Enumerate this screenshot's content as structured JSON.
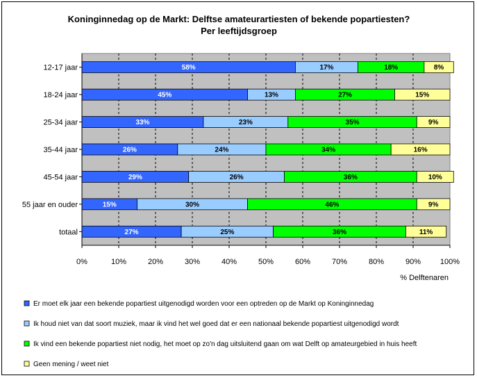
{
  "chart_data": {
    "type": "bar",
    "orientation": "horizontal",
    "stacked": "percent",
    "title": "Koninginnedag op de Markt: Delftse amateurartiesten of bekende popartiesten?",
    "subtitle": "Per leeftijdsgroep",
    "xlabel": "% Delftenaren",
    "ylabel": "",
    "xlim": [
      0,
      100
    ],
    "xticks": [
      "0%",
      "10%",
      "20%",
      "30%",
      "40%",
      "50%",
      "60%",
      "70%",
      "80%",
      "90%",
      "100%"
    ],
    "grid": true,
    "legend_position": "bottom",
    "plot_background": "#c0c0c0",
    "categories": [
      "12-17 jaar",
      "18-24 jaar",
      "25-34 jaar",
      "35-44 jaar",
      "45-54 jaar",
      "55 jaar en ouder",
      "totaal"
    ],
    "series": [
      {
        "name": "Er moet elk jaar een bekende popartiest uitgenodigd worden voor een optreden op de Markt op Koninginnedag",
        "color": "#3366ff",
        "label_color": "#ffffff",
        "values": [
          58,
          45,
          33,
          26,
          29,
          15,
          27
        ]
      },
      {
        "name": "Ik houd niet van dat soort muziek, maar ik vind het wel goed dat er een nationaal bekende popartiest uitgenodigd wordt",
        "color": "#99ccff",
        "label_color": "#000000",
        "values": [
          17,
          13,
          23,
          24,
          26,
          30,
          25
        ]
      },
      {
        "name": "Ik vind een bekende popartiest niet nodig, het moet op zo'n dag uitsluitend gaan om wat Delft op amateurgebied in huis heeft",
        "color": "#00ff00",
        "label_color": "#000000",
        "values": [
          18,
          27,
          35,
          34,
          36,
          46,
          36
        ]
      },
      {
        "name": "Geen mening / weet niet",
        "color": "#ffff99",
        "label_color": "#000000",
        "values": [
          8,
          15,
          9,
          16,
          10,
          9,
          11
        ]
      }
    ]
  }
}
